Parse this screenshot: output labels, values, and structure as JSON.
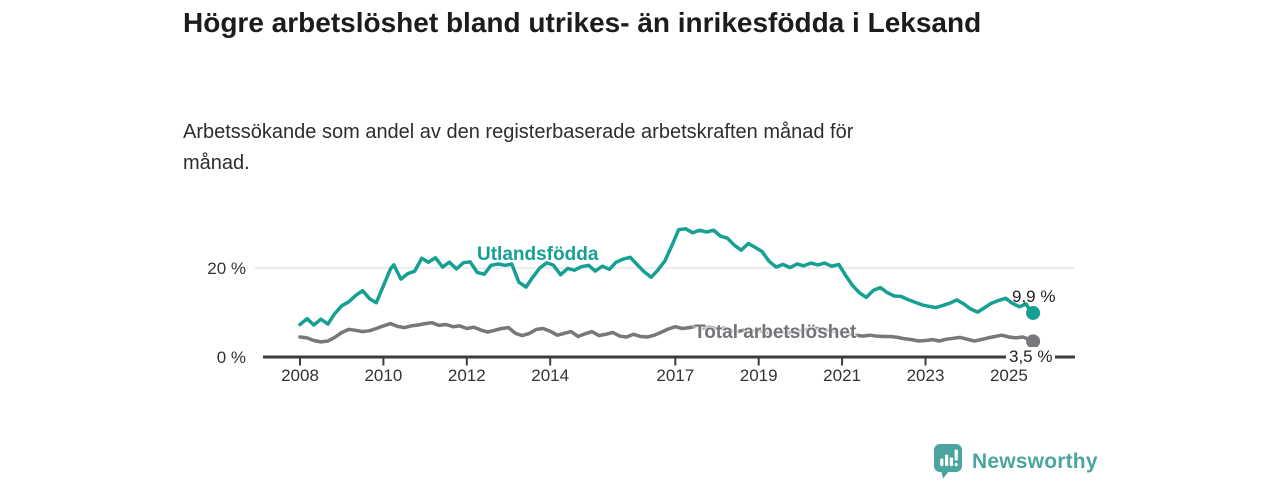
{
  "header": {
    "title": "Högre arbetslöshet bland utrikes- än inrikesfödda i Leksand",
    "subtitle": "Arbetssökande som andel av den registerbaserade arbetskraften månad för månad."
  },
  "colors": {
    "accent_teal": "#16a094",
    "line_gray": "#77777c",
    "logo_teal": "#4aa5a0",
    "grid_line": "#d8d8d8",
    "axis_line": "#3c3c3c",
    "text_dark": "#1c1c1c"
  },
  "chart_data": {
    "type": "line",
    "title": "Högre arbetslöshet bland utrikes- än inrikesfödda i Leksand",
    "subtitle": "Arbetssökande som andel av den registerbaserade arbetskraften månad för månad.",
    "unit": "%",
    "grid": "horizontal-20-only",
    "legend_position": "inline-on-line",
    "x_axis": {
      "range": [
        2007.1,
        2026.6
      ],
      "ticks": [
        {
          "value": 2008,
          "label": "2008"
        },
        {
          "value": 2010,
          "label": "2010"
        },
        {
          "value": 2012,
          "label": "2012"
        },
        {
          "value": 2014,
          "label": "2014"
        },
        {
          "value": 2017,
          "label": "2017"
        },
        {
          "value": 2019,
          "label": "2019"
        },
        {
          "value": 2021,
          "label": "2021"
        },
        {
          "value": 2023,
          "label": "2023"
        },
        {
          "value": 2025,
          "label": "2025"
        }
      ]
    },
    "y_axis": {
      "range": [
        0,
        33
      ],
      "ticks": [
        {
          "value": 0,
          "label": "0 %"
        },
        {
          "value": 20,
          "label": "20 %"
        }
      ]
    },
    "series": [
      {
        "name": "Utlandsfödda",
        "color": "#16a094",
        "end_label": "9,9 %",
        "end_value": 9.9,
        "points": [
          [
            2008.0,
            7.3
          ],
          [
            2008.17,
            8.6
          ],
          [
            2008.33,
            7.2
          ],
          [
            2008.5,
            8.5
          ],
          [
            2008.67,
            7.4
          ],
          [
            2008.83,
            9.7
          ],
          [
            2009.0,
            11.5
          ],
          [
            2009.17,
            12.4
          ],
          [
            2009.33,
            13.8
          ],
          [
            2009.5,
            14.9
          ],
          [
            2009.67,
            13.1
          ],
          [
            2009.83,
            12.2
          ],
          [
            2010.0,
            16.0
          ],
          [
            2010.17,
            19.8
          ],
          [
            2010.25,
            20.7
          ],
          [
            2010.42,
            17.5
          ],
          [
            2010.58,
            18.7
          ],
          [
            2010.75,
            19.3
          ],
          [
            2010.92,
            22.2
          ],
          [
            2011.08,
            21.3
          ],
          [
            2011.25,
            22.3
          ],
          [
            2011.42,
            20.2
          ],
          [
            2011.58,
            21.3
          ],
          [
            2011.75,
            19.8
          ],
          [
            2011.92,
            21.2
          ],
          [
            2012.08,
            21.4
          ],
          [
            2012.25,
            19.0
          ],
          [
            2012.42,
            18.6
          ],
          [
            2012.58,
            20.6
          ],
          [
            2012.75,
            20.9
          ],
          [
            2012.92,
            20.6
          ],
          [
            2013.08,
            20.9
          ],
          [
            2013.25,
            16.8
          ],
          [
            2013.42,
            15.7
          ],
          [
            2013.58,
            17.9
          ],
          [
            2013.75,
            20.0
          ],
          [
            2013.92,
            21.2
          ],
          [
            2014.08,
            20.6
          ],
          [
            2014.25,
            18.5
          ],
          [
            2014.42,
            19.9
          ],
          [
            2014.58,
            19.5
          ],
          [
            2014.75,
            20.3
          ],
          [
            2014.92,
            20.6
          ],
          [
            2015.08,
            19.3
          ],
          [
            2015.25,
            20.4
          ],
          [
            2015.42,
            19.7
          ],
          [
            2015.58,
            21.3
          ],
          [
            2015.75,
            22.0
          ],
          [
            2015.92,
            22.4
          ],
          [
            2016.08,
            20.8
          ],
          [
            2016.25,
            19.2
          ],
          [
            2016.42,
            17.9
          ],
          [
            2016.58,
            19.5
          ],
          [
            2016.75,
            21.6
          ],
          [
            2016.92,
            25.1
          ],
          [
            2017.08,
            28.6
          ],
          [
            2017.25,
            28.8
          ],
          [
            2017.42,
            27.9
          ],
          [
            2017.58,
            28.5
          ],
          [
            2017.75,
            28.1
          ],
          [
            2017.92,
            28.5
          ],
          [
            2018.08,
            27.2
          ],
          [
            2018.25,
            26.7
          ],
          [
            2018.42,
            25.1
          ],
          [
            2018.58,
            24.0
          ],
          [
            2018.75,
            25.5
          ],
          [
            2018.92,
            24.6
          ],
          [
            2019.08,
            23.7
          ],
          [
            2019.25,
            21.5
          ],
          [
            2019.42,
            20.2
          ],
          [
            2019.58,
            20.8
          ],
          [
            2019.75,
            20.1
          ],
          [
            2019.92,
            20.9
          ],
          [
            2020.08,
            20.5
          ],
          [
            2020.25,
            21.1
          ],
          [
            2020.42,
            20.7
          ],
          [
            2020.58,
            21.1
          ],
          [
            2020.75,
            20.4
          ],
          [
            2020.92,
            20.8
          ],
          [
            2021.08,
            18.4
          ],
          [
            2021.25,
            16.1
          ],
          [
            2021.42,
            14.4
          ],
          [
            2021.58,
            13.4
          ],
          [
            2021.75,
            15.0
          ],
          [
            2021.92,
            15.6
          ],
          [
            2022.08,
            14.5
          ],
          [
            2022.25,
            13.7
          ],
          [
            2022.42,
            13.6
          ],
          [
            2022.58,
            12.9
          ],
          [
            2022.75,
            12.3
          ],
          [
            2022.92,
            11.7
          ],
          [
            2023.08,
            11.4
          ],
          [
            2023.25,
            11.1
          ],
          [
            2023.42,
            11.6
          ],
          [
            2023.58,
            12.1
          ],
          [
            2023.75,
            12.8
          ],
          [
            2023.92,
            11.9
          ],
          [
            2024.08,
            10.8
          ],
          [
            2024.25,
            10.1
          ],
          [
            2024.42,
            11.1
          ],
          [
            2024.58,
            12.1
          ],
          [
            2024.75,
            12.7
          ],
          [
            2024.92,
            13.2
          ],
          [
            2025.08,
            12.1
          ],
          [
            2025.25,
            11.3
          ],
          [
            2025.42,
            11.9
          ],
          [
            2025.5,
            10.4
          ],
          [
            2025.58,
            9.9
          ]
        ]
      },
      {
        "name": "Total arbetslöshet",
        "color": "#77777c",
        "end_label": "3,5 %",
        "end_value": 3.5,
        "points": [
          [
            2008.0,
            4.5
          ],
          [
            2008.17,
            4.3
          ],
          [
            2008.33,
            3.7
          ],
          [
            2008.5,
            3.4
          ],
          [
            2008.67,
            3.6
          ],
          [
            2008.83,
            4.4
          ],
          [
            2009.0,
            5.5
          ],
          [
            2009.17,
            6.2
          ],
          [
            2009.33,
            6.0
          ],
          [
            2009.5,
            5.7
          ],
          [
            2009.67,
            5.9
          ],
          [
            2009.83,
            6.4
          ],
          [
            2010.0,
            7.0
          ],
          [
            2010.17,
            7.5
          ],
          [
            2010.33,
            6.9
          ],
          [
            2010.5,
            6.6
          ],
          [
            2010.67,
            7.0
          ],
          [
            2010.83,
            7.2
          ],
          [
            2011.0,
            7.5
          ],
          [
            2011.17,
            7.7
          ],
          [
            2011.33,
            7.1
          ],
          [
            2011.5,
            7.3
          ],
          [
            2011.67,
            6.8
          ],
          [
            2011.83,
            7.0
          ],
          [
            2012.0,
            6.4
          ],
          [
            2012.17,
            6.7
          ],
          [
            2012.33,
            6.1
          ],
          [
            2012.5,
            5.6
          ],
          [
            2012.67,
            6.0
          ],
          [
            2012.83,
            6.4
          ],
          [
            2013.0,
            6.6
          ],
          [
            2013.17,
            5.3
          ],
          [
            2013.33,
            4.8
          ],
          [
            2013.5,
            5.3
          ],
          [
            2013.67,
            6.2
          ],
          [
            2013.83,
            6.4
          ],
          [
            2014.0,
            5.8
          ],
          [
            2014.17,
            4.9
          ],
          [
            2014.33,
            5.3
          ],
          [
            2014.5,
            5.7
          ],
          [
            2014.67,
            4.6
          ],
          [
            2014.83,
            5.2
          ],
          [
            2015.0,
            5.7
          ],
          [
            2015.17,
            4.8
          ],
          [
            2015.33,
            5.1
          ],
          [
            2015.5,
            5.5
          ],
          [
            2015.67,
            4.7
          ],
          [
            2015.83,
            4.5
          ],
          [
            2016.0,
            5.1
          ],
          [
            2016.17,
            4.6
          ],
          [
            2016.33,
            4.5
          ],
          [
            2016.5,
            4.9
          ],
          [
            2016.67,
            5.6
          ],
          [
            2016.83,
            6.3
          ],
          [
            2017.0,
            6.8
          ],
          [
            2017.17,
            6.4
          ],
          [
            2017.33,
            6.6
          ],
          [
            2017.5,
            6.9
          ],
          [
            2017.67,
            6.5
          ],
          [
            2017.83,
            6.7
          ],
          [
            2018.0,
            6.3
          ],
          [
            2018.17,
            6.5
          ],
          [
            2018.33,
            6.0
          ],
          [
            2018.5,
            5.7
          ],
          [
            2018.67,
            6.1
          ],
          [
            2018.83,
            5.8
          ],
          [
            2019.0,
            6.0
          ],
          [
            2019.17,
            5.6
          ],
          [
            2019.33,
            5.3
          ],
          [
            2019.5,
            5.7
          ],
          [
            2019.67,
            5.4
          ],
          [
            2019.83,
            5.6
          ],
          [
            2020.0,
            5.9
          ],
          [
            2020.17,
            6.2
          ],
          [
            2020.33,
            6.5
          ],
          [
            2020.5,
            6.3
          ],
          [
            2020.67,
            6.0
          ],
          [
            2020.83,
            5.7
          ],
          [
            2021.0,
            5.4
          ],
          [
            2021.17,
            5.1
          ],
          [
            2021.33,
            4.9
          ],
          [
            2021.5,
            4.7
          ],
          [
            2021.67,
            4.9
          ],
          [
            2021.83,
            4.7
          ],
          [
            2022.0,
            4.6
          ],
          [
            2022.17,
            4.6
          ],
          [
            2022.33,
            4.4
          ],
          [
            2022.5,
            4.1
          ],
          [
            2022.67,
            3.9
          ],
          [
            2022.83,
            3.6
          ],
          [
            2023.0,
            3.7
          ],
          [
            2023.17,
            3.9
          ],
          [
            2023.33,
            3.6
          ],
          [
            2023.5,
            4.0
          ],
          [
            2023.67,
            4.2
          ],
          [
            2023.83,
            4.4
          ],
          [
            2024.0,
            4.0
          ],
          [
            2024.17,
            3.6
          ],
          [
            2024.33,
            3.9
          ],
          [
            2024.5,
            4.3
          ],
          [
            2024.67,
            4.6
          ],
          [
            2024.83,
            4.9
          ],
          [
            2025.0,
            4.5
          ],
          [
            2025.17,
            4.3
          ],
          [
            2025.33,
            4.5
          ],
          [
            2025.42,
            4.2
          ],
          [
            2025.58,
            3.5
          ]
        ]
      }
    ]
  },
  "branding": {
    "logo_text": "Newsworthy",
    "logo_icon": "speech-bubble-bar-chart-icon"
  }
}
